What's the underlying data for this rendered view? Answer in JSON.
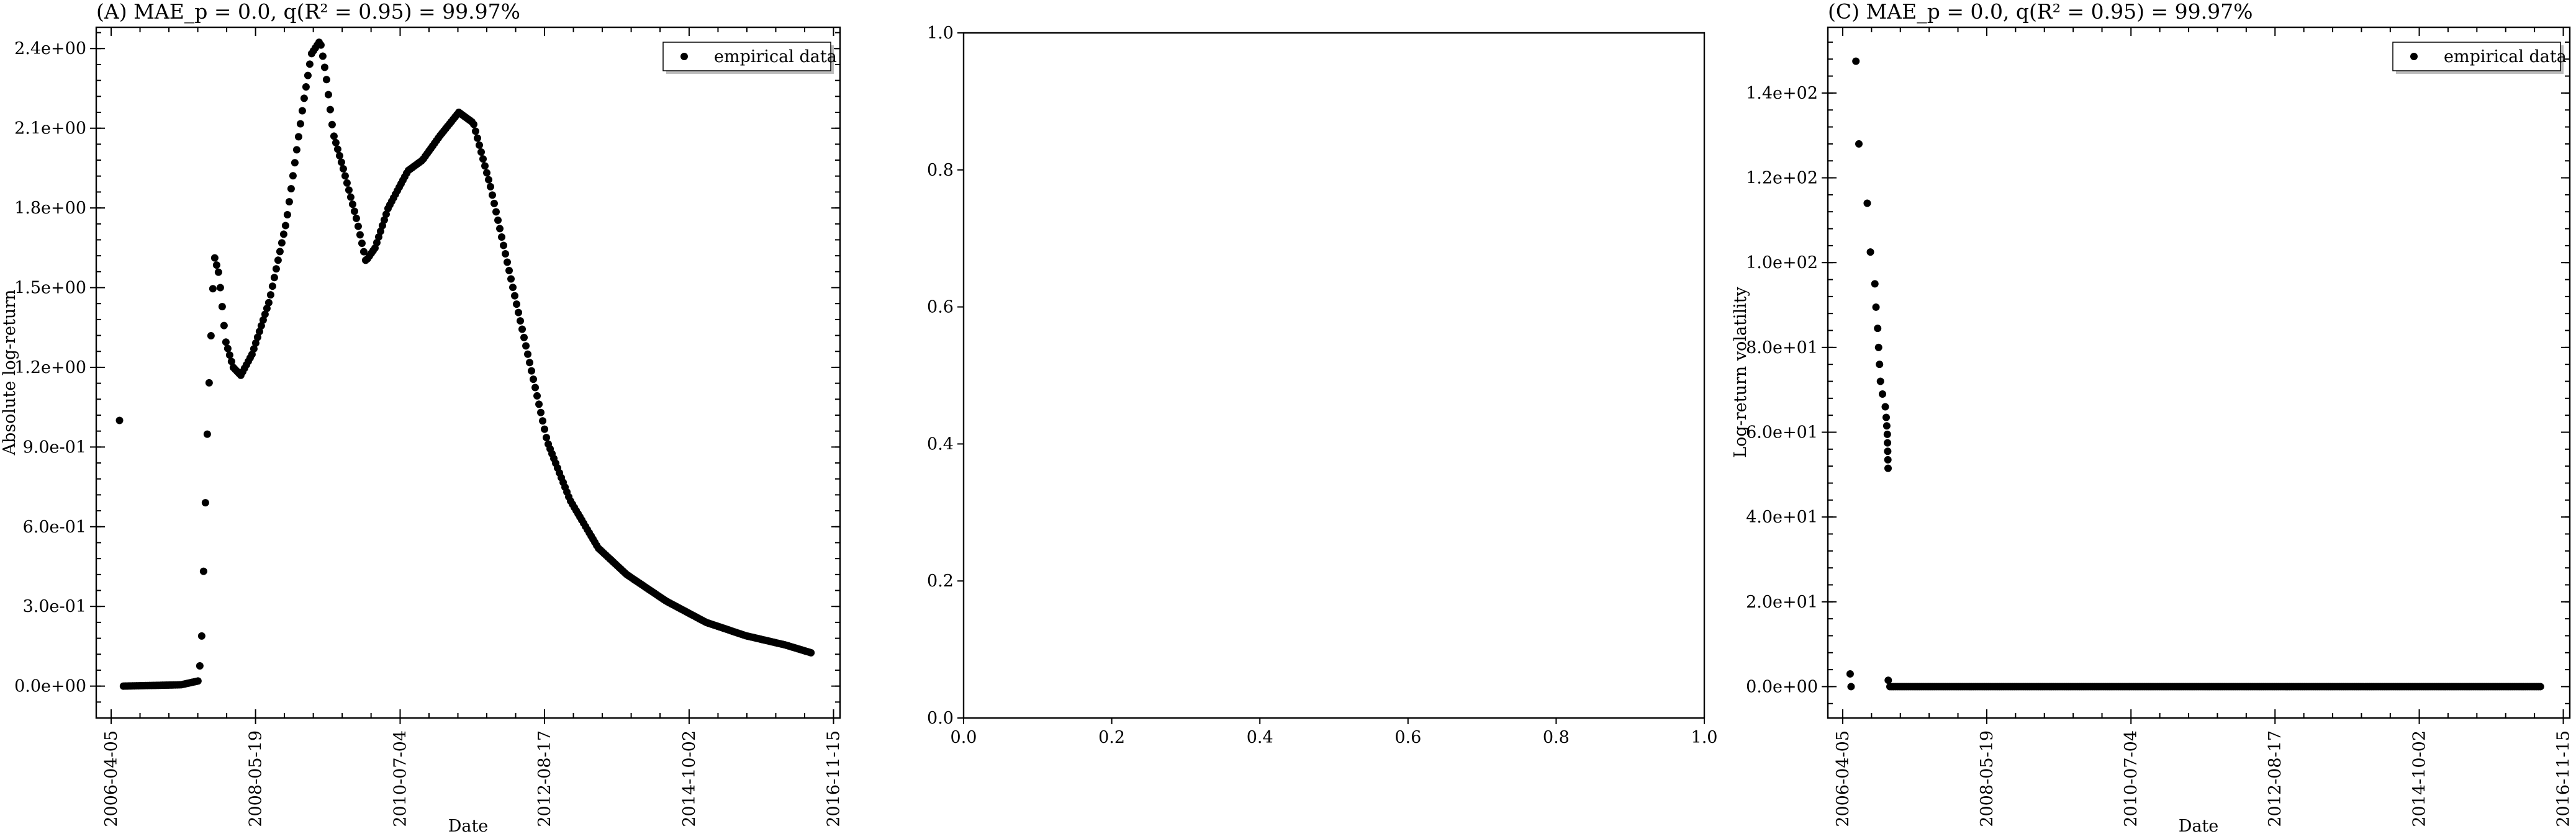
{
  "chart_data": [
    {
      "id": "A",
      "type": "scatter",
      "title": "(A) MAE_p = 0.0, q(R² = 0.95) = 99.97%",
      "xlabel": "Date",
      "ylabel": "Absolute log-return",
      "x_tick_labels": [
        "2006-04-05",
        "2008-05-19",
        "2010-07-04",
        "2012-08-17",
        "2014-10-02",
        "2016-11-15"
      ],
      "y_tick_labels": [
        "0.0e+00",
        "3.0e-01",
        "6.0e-01",
        "9.0e-01",
        "1.2e+00",
        "1.5e+00",
        "1.8e+00",
        "2.1e+00",
        "2.4e+00"
      ],
      "ylim": [
        -0.12,
        2.48
      ],
      "xlim": [
        "2006-01-15",
        "2016-12-20"
      ],
      "grid": false,
      "legend": {
        "placement": "top-right",
        "entries": [
          "empirical data"
        ]
      },
      "marker_color": "#000000",
      "series": [
        {
          "name": "empirical data",
          "x_start": "2006-05-20",
          "x_step_days": 10,
          "key_points": [
            [
              "2006-05-20",
              1.0
            ],
            [
              "2006-06-10",
              0.0
            ],
            [
              "2007-04-15",
              0.005
            ],
            [
              "2007-07-20",
              0.02
            ],
            [
              "2007-08-05",
              0.2
            ],
            [
              "2007-09-05",
              1.0
            ],
            [
              "2007-10-10",
              1.62
            ],
            [
              "2007-11-05",
              1.55
            ],
            [
              "2007-12-10",
              1.3
            ],
            [
              "2008-01-20",
              1.2
            ],
            [
              "2008-03-01",
              1.17
            ],
            [
              "2008-05-01",
              1.25
            ],
            [
              "2008-08-01",
              1.45
            ],
            [
              "2008-11-01",
              1.75
            ],
            [
              "2009-02-01",
              2.2
            ],
            [
              "2009-03-15",
              2.38
            ],
            [
              "2009-05-01",
              2.43
            ],
            [
              "2009-06-01",
              2.3
            ],
            [
              "2009-07-10",
              2.08
            ],
            [
              "2009-09-01",
              1.95
            ],
            [
              "2009-11-15",
              1.75
            ],
            [
              "2010-01-01",
              1.6
            ],
            [
              "2010-02-20",
              1.65
            ],
            [
              "2010-05-01",
              1.8
            ],
            [
              "2010-08-15",
              1.94
            ],
            [
              "2010-11-01",
              1.98
            ],
            [
              "2011-02-01",
              2.07
            ],
            [
              "2011-05-15",
              2.16
            ],
            [
              "2011-08-01",
              2.12
            ],
            [
              "2011-11-01",
              1.88
            ],
            [
              "2012-04-01",
              1.4
            ],
            [
              "2012-09-01",
              0.92
            ],
            [
              "2013-01-01",
              0.7
            ],
            [
              "2013-06-01",
              0.52
            ],
            [
              "2013-11-01",
              0.42
            ],
            [
              "2014-06-01",
              0.32
            ],
            [
              "2015-01-01",
              0.24
            ],
            [
              "2015-08-01",
              0.19
            ],
            [
              "2016-03-01",
              0.155
            ],
            [
              "2016-07-20",
              0.125
            ]
          ]
        }
      ]
    },
    {
      "id": "B",
      "type": "scatter",
      "title": "",
      "xlabel": "",
      "ylabel": "",
      "x_tick_labels": [
        "0.0",
        "0.2",
        "0.4",
        "0.6",
        "0.8",
        "1.0"
      ],
      "y_tick_labels": [
        "0.0",
        "0.2",
        "0.4",
        "0.6",
        "0.8",
        "1.0"
      ],
      "xlim": [
        0,
        1
      ],
      "ylim": [
        0,
        1
      ],
      "grid": false,
      "series": []
    },
    {
      "id": "C",
      "type": "scatter",
      "title": "(C) MAE_p = 0.0, q(R² = 0.95) = 99.97%",
      "xlabel": "Date",
      "ylabel": "Log-return volatility",
      "x_tick_labels": [
        "2006-04-05",
        "2008-05-19",
        "2010-07-04",
        "2012-08-17",
        "2014-10-02",
        "2016-11-15"
      ],
      "y_tick_labels": [
        "0.0e+00",
        "2.0e+01",
        "4.0e+01",
        "6.0e+01",
        "8.0e+01",
        "1.0e+02",
        "1.2e+02",
        "1.4e+02"
      ],
      "ylim": [
        -7.4,
        155.5
      ],
      "xlim": [
        "2006-01-15",
        "2016-12-20"
      ],
      "grid": false,
      "legend": {
        "placement": "top-right",
        "entries": [
          "empirical data"
        ]
      },
      "marker_color": "#000000",
      "series": [
        {
          "name": "empirical data",
          "points": [
            [
              "2006-05-15",
              3.0
            ],
            [
              "2006-05-20",
              0.0
            ],
            [
              "2006-06-15",
              147.5
            ],
            [
              "2006-07-01",
              128.0
            ],
            [
              "2006-08-15",
              114.0
            ],
            [
              "2006-09-01",
              102.5
            ],
            [
              "2006-09-25",
              95.0
            ],
            [
              "2006-10-01",
              89.5
            ],
            [
              "2006-10-10",
              84.5
            ],
            [
              "2006-10-15",
              80.0
            ],
            [
              "2006-10-20",
              76.0
            ],
            [
              "2006-10-25",
              72.0
            ],
            [
              "2006-11-05",
              69.0
            ],
            [
              "2006-11-20",
              66.0
            ],
            [
              "2006-11-25",
              63.5
            ],
            [
              "2006-11-28",
              61.5
            ],
            [
              "2006-12-01",
              59.5
            ],
            [
              "2006-12-02",
              57.5
            ],
            [
              "2006-12-03",
              55.5
            ],
            [
              "2006-12-04",
              53.5
            ],
            [
              "2006-12-05",
              51.5
            ],
            [
              "2006-12-06",
              1.5
            ]
          ],
          "tail": {
            "x_from": "2006-12-15",
            "x_to": "2016-07-20",
            "x_step_days": 10,
            "y": 0.0
          }
        }
      ]
    }
  ]
}
